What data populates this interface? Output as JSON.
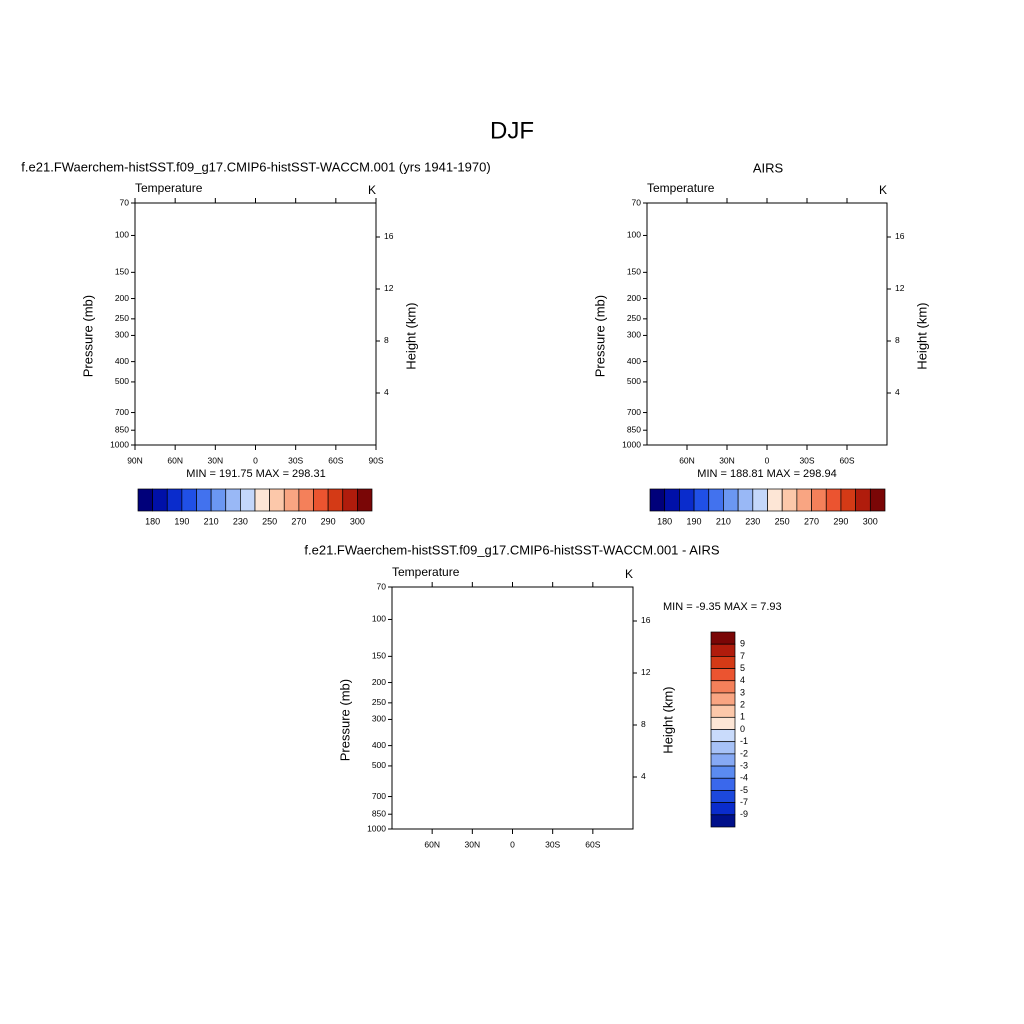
{
  "title": "DJF",
  "chart_data": [
    {
      "type": "contour",
      "title": "f.e21.FWaerchem-histSST.f09_g17.CMIP6-histSST-WACCM.001 (yrs 1941-1970)",
      "left_string": "Temperature",
      "right_string": "K",
      "ylabel": "Pressure (mb)",
      "y2label": "Height (km)",
      "yscale": "log",
      "ylim": [
        70,
        1000
      ],
      "yticks": [
        70,
        100,
        150,
        200,
        250,
        300,
        400,
        500,
        700,
        850,
        1000
      ],
      "y2ticks": [
        4,
        8,
        12,
        16
      ],
      "xlim": [
        90,
        -90
      ],
      "xticks": [
        {
          "value": 90,
          "label": "90N"
        },
        {
          "value": 60,
          "label": "60N"
        },
        {
          "value": 30,
          "label": "30N"
        },
        0,
        {
          "value": -30,
          "label": "30S"
        },
        {
          "value": -60,
          "label": "60S"
        },
        {
          "value": -90,
          "label": "90S"
        }
      ],
      "stats": "MIN = 191.75  MAX = 298.31",
      "colorbar": {
        "orientation": "horizontal",
        "labels": [
          180,
          190,
          210,
          230,
          250,
          270,
          290,
          300
        ],
        "colors": [
          "#00007a",
          "#0010a8",
          "#0a2ccc",
          "#2050e6",
          "#4272ee",
          "#6b97f2",
          "#99b8f6",
          "#c4d7fa",
          "#fde6d6",
          "#fcc8aa",
          "#f9a582",
          "#f4805a",
          "#eb5430",
          "#d43a16",
          "#b01c0c",
          "#7a0606"
        ]
      }
    },
    {
      "type": "contour",
      "title": "AIRS",
      "left_string": "Temperature",
      "right_string": "K",
      "ylabel": "Pressure (mb)",
      "y2label": "Height (km)",
      "yscale": "log",
      "ylim": [
        70,
        1000
      ],
      "yticks": [
        70,
        100,
        150,
        200,
        250,
        300,
        400,
        500,
        700,
        850,
        1000
      ],
      "y2ticks": [
        4,
        8,
        12,
        16
      ],
      "xlim": [
        90,
        -90
      ],
      "xticks": [
        {
          "value": 60,
          "label": "60N"
        },
        {
          "value": 30,
          "label": "30N"
        },
        0,
        {
          "value": -30,
          "label": "30S"
        },
        {
          "value": -60,
          "label": "60S"
        }
      ],
      "stats": "MIN = 188.81  MAX = 298.94",
      "colorbar": {
        "orientation": "horizontal",
        "labels": [
          180,
          190,
          210,
          230,
          250,
          270,
          290,
          300
        ],
        "colors": [
          "#00007a",
          "#0010a8",
          "#0a2ccc",
          "#2050e6",
          "#4272ee",
          "#6b97f2",
          "#99b8f6",
          "#c4d7fa",
          "#fde6d6",
          "#fcc8aa",
          "#f9a582",
          "#f4805a",
          "#eb5430",
          "#d43a16",
          "#b01c0c",
          "#7a0606"
        ]
      }
    },
    {
      "type": "contour",
      "title": "f.e21.FWaerchem-histSST.f09_g17.CMIP6-histSST-WACCM.001 - AIRS",
      "left_string": "Temperature",
      "right_string": "K",
      "ylabel": "Pressure (mb)",
      "y2label": "Height (km)",
      "yscale": "log",
      "ylim": [
        70,
        1000
      ],
      "yticks": [
        70,
        100,
        150,
        200,
        250,
        300,
        400,
        500,
        700,
        850,
        1000
      ],
      "y2ticks": [
        4,
        8,
        12,
        16
      ],
      "xlim": [
        90,
        -90
      ],
      "xticks": [
        {
          "value": 60,
          "label": "60N"
        },
        {
          "value": 30,
          "label": "30N"
        },
        0,
        {
          "value": -30,
          "label": "30S"
        },
        {
          "value": -60,
          "label": "60S"
        }
      ],
      "stats": "MIN =  -9.35  MAX =   7.93",
      "colorbar": {
        "orientation": "vertical",
        "labels": [
          9,
          7,
          5,
          4,
          3,
          2,
          1,
          0,
          -1,
          -2,
          -3,
          -4,
          -5,
          -7,
          -9
        ],
        "colors": [
          "#7a0606",
          "#b01c0c",
          "#d43a16",
          "#eb5430",
          "#f4805a",
          "#f9a582",
          "#fcc8aa",
          "#fde6d6",
          "#c9dbfb",
          "#a7c2f7",
          "#86a9f4",
          "#5b8bf1",
          "#3a68ec",
          "#1c48dc",
          "#0a2ccc",
          "#00108a"
        ]
      }
    }
  ]
}
